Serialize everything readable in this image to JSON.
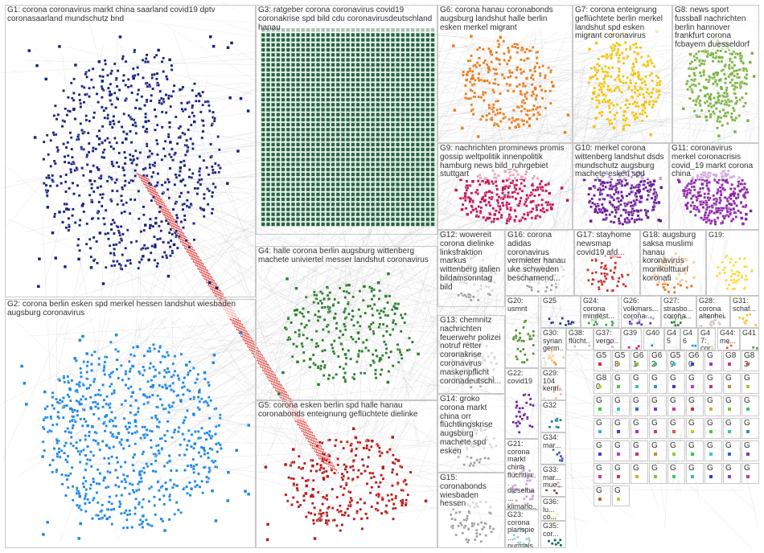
{
  "diagram": {
    "groups": [
      {
        "id": "G1",
        "label": "G1: corona coronavirus markt china saarland covid19 dptv coronasaarland mundschutz bnd",
        "color": "#1a237e"
      },
      {
        "id": "G2",
        "label": "G2: corona berlin esken spd merkel hessen landshut wiesbaden augsburg coronavirus",
        "color": "#1e88e5"
      },
      {
        "id": "G3",
        "label": "G3: ratgeber corona coronavirus covid19 coronakrise spd bild cdu coronavirusdeutschland hanau",
        "color": "#2e5d4b"
      },
      {
        "id": "G4",
        "label": "G4: halle corona berlin augsburg wittenberg machete univiertel messer landshut coronavirus",
        "color": "#2e7d32"
      },
      {
        "id": "G5",
        "label": "G5: corona esken berlin spd halle hanau coronabonds enteignung geflüchtete dielinke",
        "color": "#b71c1c"
      },
      {
        "id": "G6",
        "label": "G6: corona hanau coronabonds augsburg landshut halle berlin esken merkel migrant",
        "color": "#e67e22"
      },
      {
        "id": "G7",
        "label": "G7: corona enteignung geflüchtete berlin merkel landshut spd esken migrant coronavirus",
        "color": "#f1c40f"
      },
      {
        "id": "G8",
        "label": "G8: news sport fussball nachrichten berlin hannover frankfurt corona fcbayern duesseldorf",
        "color": "#7cb342"
      },
      {
        "id": "G9",
        "label": "G9: nachrichten prominews promis gossip weltpolitik innenpolitik hamburg news bild_ruhrgebiet stuttgart",
        "color": "#c2185b"
      },
      {
        "id": "G10",
        "label": "G10: merkel corona wittenberg landshut dsds mundschutz augsburg machete esken spd",
        "color": "#6a1b9a"
      },
      {
        "id": "G11",
        "label": "G11: coronavirus merkel coronacrisis covid_19 markt corona china",
        "color": "#8e24aa"
      },
      {
        "id": "G12",
        "label": "G12: wowereit corona dielinke linksfraktion markus wittenberg italien bildamsonntag bild",
        "color": "#9e9e9e"
      },
      {
        "id": "G13",
        "label": "G13: chemnitz nachrichten feuerwehr polizei notruf retter coronakrise coronavirus maskenpflicht coronadeutschl...",
        "color": "#9e9e9e"
      },
      {
        "id": "G14",
        "label": "G14: groko corona markt china orr flüchtlingskrise augsburg machete spd esken",
        "color": "#9e9e9e"
      },
      {
        "id": "G15",
        "label": "G15: coronabonds wiesbaden hessen",
        "color": "#9e9e9e"
      },
      {
        "id": "G16",
        "label": "G16: corona adidas coronavirus vermieter hanau uke schweden beschamend...",
        "color": "#9e9e9e"
      },
      {
        "id": "G17",
        "label": "G17: stayhome newsmap covid19 afd...",
        "color": "#c62828"
      },
      {
        "id": "G18",
        "label": "G18: augsburg saksa muslimi hanau koronavirus monikulttuuri koronafi",
        "color": "#ef6c00"
      },
      {
        "id": "G19",
        "label": "G19:",
        "color": "#fdd835"
      },
      {
        "id": "G20",
        "label": "G20: usmnt",
        "color": "#558b2f"
      },
      {
        "id": "G21",
        "label": "G21: corona markt china flüchtlin... dieselba... klimaho...",
        "color": "#7b1fa2"
      },
      {
        "id": "G22",
        "label": "G22: covid19",
        "color": "#6a1b9a"
      },
      {
        "id": "G23",
        "label": "G23: corona planspie... nurmals...",
        "color": "#00897b"
      },
      {
        "id": "G24",
        "label": "G24: corona mindest...",
        "color": "#43a047"
      },
      {
        "id": "G25",
        "label": "G25",
        "color": "#283593"
      },
      {
        "id": "G26",
        "label": "G26: volkmars... corona...",
        "color": "#5e35b1"
      },
      {
        "id": "G27",
        "label": "G27: strasbo... corona...",
        "color": "#2e7d32"
      },
      {
        "id": "G28",
        "label": "G28: corona altenhei...",
        "color": "#8d6e63"
      },
      {
        "id": "G29",
        "label": "G29: 104 kenn...",
        "color": "#e53935"
      },
      {
        "id": "G30",
        "label": "G30: syrian germ...",
        "color": "#fb8c00"
      },
      {
        "id": "G31",
        "label": "G31: schaf...",
        "color": "#fbc02d"
      },
      {
        "id": "G32",
        "label": "G32",
        "color": "#00838f"
      },
      {
        "id": "G33",
        "label": "G33: mar... mue...",
        "color": "#6d4c41"
      },
      {
        "id": "G34",
        "label": "G34: mar...",
        "color": "#3949ab"
      },
      {
        "id": "G35",
        "label": "G35: cor...",
        "color": "#00695c"
      },
      {
        "id": "G36",
        "label": "G36: lu... co...",
        "color": "#c0ca33"
      },
      {
        "id": "G37",
        "label": "G37: vergo...",
        "color": "#8e24aa"
      },
      {
        "id": "G38",
        "label": "G38: flücht...",
        "color": "#546e7a"
      },
      {
        "id": "G39",
        "label": "G39",
        "color": "#d81b60"
      },
      {
        "id": "G40",
        "label": "G40",
        "color": "#1e88e5"
      },
      {
        "id": "G41",
        "label": "G41",
        "color": "#43a047"
      },
      {
        "id": "G44",
        "label": "G44: me...",
        "color": "#f4511e"
      },
      {
        "id": "G45",
        "label": "G45",
        "color": "#5e35b1"
      },
      {
        "id": "G46",
        "label": "G46",
        "color": "#039be5"
      },
      {
        "id": "G47",
        "label": "G47: cor...",
        "color": "#7cb342"
      }
    ],
    "small_cluster_labels": [
      "G5",
      "G58",
      "G61",
      "G62",
      "G59",
      "G60",
      "G",
      "G8",
      "G83",
      "G80",
      "G",
      "G",
      "G",
      "G",
      "G",
      "G",
      "G",
      "G",
      "G",
      "G",
      "G",
      "G",
      "G",
      "G",
      "G",
      "G",
      "G",
      "G",
      "G",
      "G",
      "G",
      "G",
      "G",
      "G",
      "G",
      "G",
      "G",
      "G",
      "G",
      "G",
      "G",
      "G",
      "G",
      "G",
      "G",
      "G",
      "G",
      "G",
      "G",
      "G",
      "G",
      "G",
      "G",
      "G",
      "G",
      "G"
    ]
  }
}
